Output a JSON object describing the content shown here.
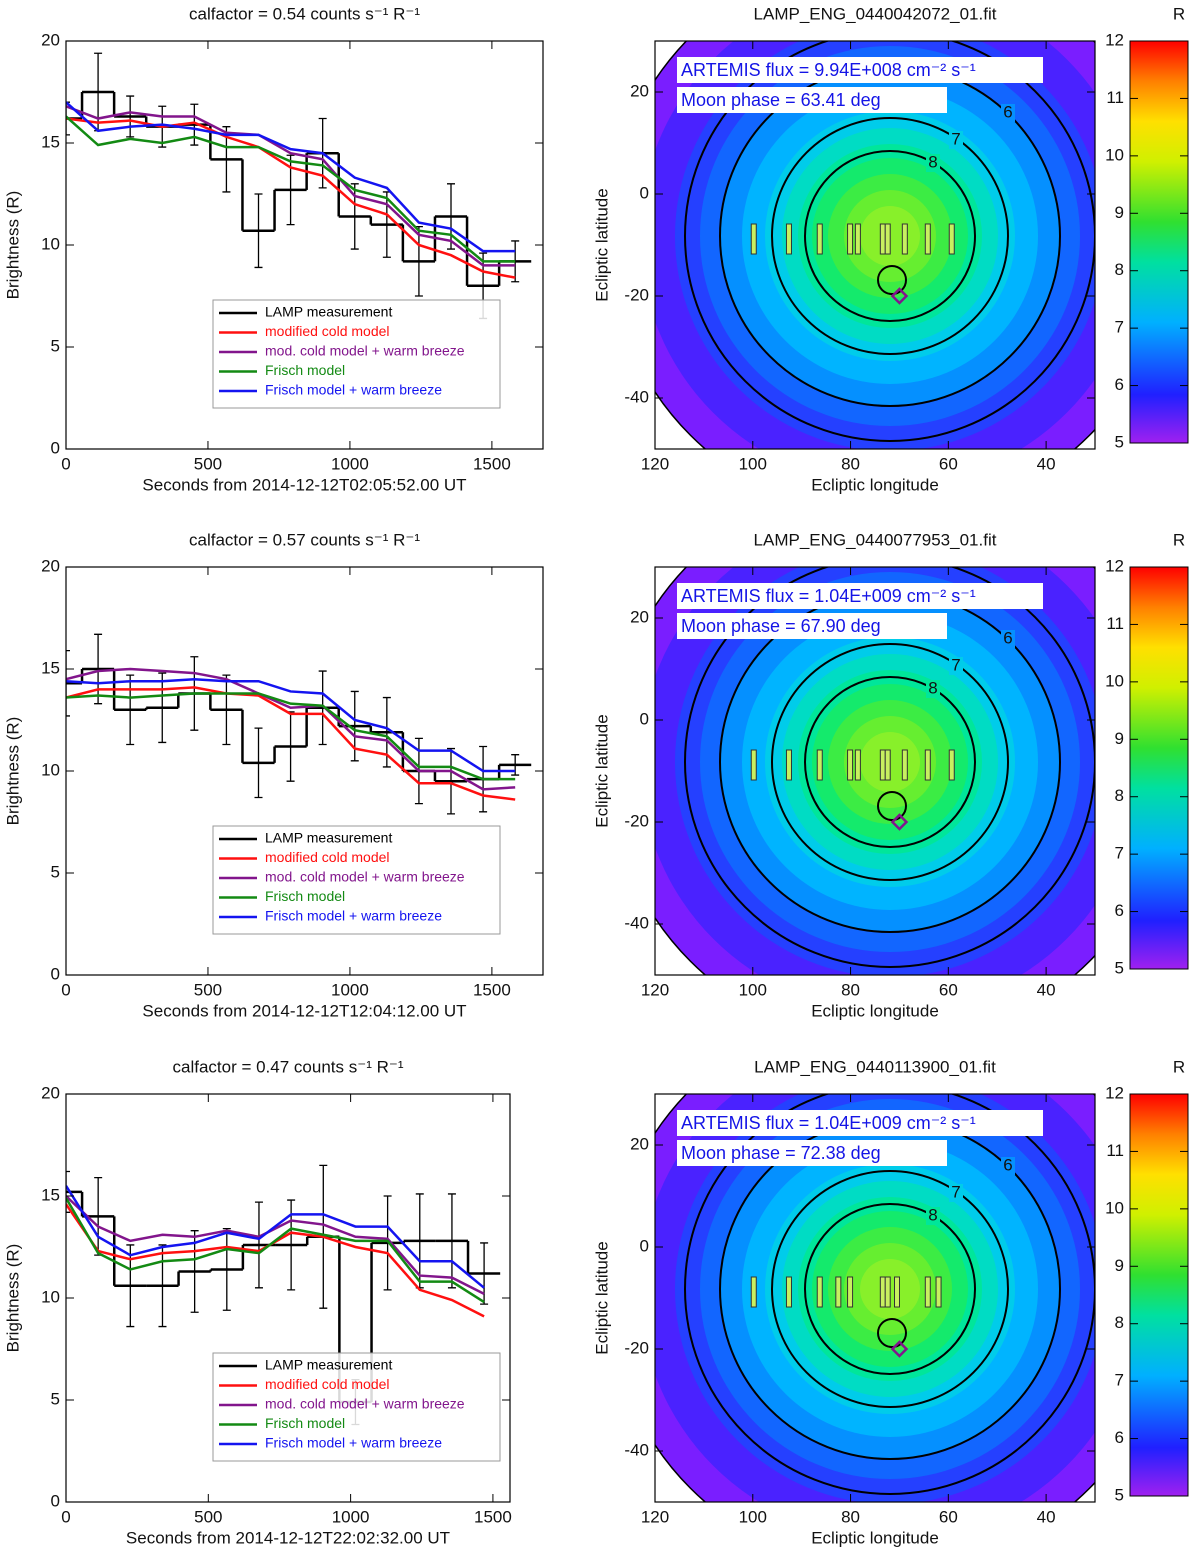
{
  "chart_data": [
    {
      "type": "line",
      "title": "calfactor = 0.54 counts s⁻¹ R⁻¹",
      "x_label": "Seconds from 2014-12-12T02:05:52.00 UT",
      "y_label": "Brightness (R)",
      "xlim": [
        0,
        1680
      ],
      "ylim": [
        0,
        20
      ],
      "xticks": [
        0,
        500,
        1000,
        1500
      ],
      "yticks": [
        0,
        5,
        10,
        15,
        20
      ],
      "x": [
        0,
        113,
        226,
        339,
        452,
        565,
        678,
        791,
        904,
        1017,
        1130,
        1243,
        1356,
        1469,
        1582
      ],
      "series": [
        {
          "name": "LAMP measurement",
          "color": "#000000",
          "step": true,
          "values": [
            16.2,
            17.5,
            16.3,
            15.8,
            15.9,
            14.2,
            10.7,
            12.7,
            14.5,
            11.4,
            11.0,
            9.2,
            11.4,
            8.0,
            9.2
          ],
          "errors": [
            0.8,
            1.9,
            1.0,
            1.0,
            1.0,
            1.6,
            1.8,
            1.7,
            1.7,
            1.6,
            1.6,
            1.7,
            1.6,
            1.6,
            1.0
          ]
        },
        {
          "name": "modified cold model",
          "color": "#ff1010",
          "values": [
            16.2,
            16.0,
            16.1,
            15.8,
            16.0,
            15.3,
            14.8,
            13.8,
            13.4,
            12.0,
            11.5,
            10.0,
            9.5,
            8.7,
            8.4
          ]
        },
        {
          "name": "mod. cold model + warm breeze",
          "color": "#82158c",
          "values": [
            16.8,
            16.2,
            16.5,
            16.3,
            16.3,
            15.5,
            15.4,
            14.5,
            14.2,
            12.4,
            12.0,
            10.5,
            10.2,
            9.0,
            9.0
          ]
        },
        {
          "name": "Frisch model",
          "color": "#138a13",
          "values": [
            16.3,
            14.9,
            15.2,
            15.0,
            15.3,
            14.8,
            14.8,
            14.1,
            13.9,
            12.7,
            12.3,
            10.7,
            10.5,
            9.2,
            9.2
          ]
        },
        {
          "name": "Frisch model + warm breeze",
          "color": "#1414f0",
          "values": [
            17.0,
            15.6,
            15.8,
            15.9,
            15.7,
            15.4,
            15.4,
            14.7,
            14.5,
            13.3,
            12.8,
            11.1,
            10.8,
            9.7,
            9.7
          ]
        }
      ]
    },
    {
      "type": "contour",
      "title": "LAMP_ENG_0440042072_01.fit",
      "x_label": "Ecliptic longitude",
      "y_label": "Ecliptic latitude",
      "xlim": [
        120,
        30
      ],
      "ylim": [
        -50,
        30
      ],
      "xticks": [
        120,
        100,
        80,
        60,
        40
      ],
      "yticks": [
        -40,
        -20,
        0,
        20
      ],
      "annotations": [
        "ARTEMIS flux =  9.94E+008 cm⁻² s⁻¹",
        "Moon phase =  63.41 deg"
      ],
      "contour_labels": [
        6,
        7,
        8
      ],
      "marker": {
        "x": 70,
        "y": -20
      },
      "slit_longitudes": [
        99.8,
        92.6,
        86.3,
        80.1,
        78.5,
        73.4,
        72.4,
        68.9,
        64.2,
        59.3
      ],
      "colorbar": {
        "label": "R",
        "lim": [
          5,
          12
        ],
        "ticks": [
          5,
          6,
          7,
          8,
          9,
          10,
          11,
          12
        ]
      }
    },
    {
      "type": "line",
      "title": "calfactor = 0.57 counts s⁻¹ R⁻¹",
      "x_label": "Seconds from 2014-12-12T12:04:12.00 UT",
      "y_label": "Brightness (R)",
      "xlim": [
        0,
        1680
      ],
      "ylim": [
        0,
        20
      ],
      "xticks": [
        0,
        500,
        1000,
        1500
      ],
      "yticks": [
        0,
        5,
        10,
        15,
        20
      ],
      "x": [
        0,
        113,
        226,
        339,
        452,
        565,
        678,
        791,
        904,
        1017,
        1130,
        1243,
        1356,
        1469,
        1582
      ],
      "series": [
        {
          "name": "LAMP measurement",
          "color": "#000000",
          "step": true,
          "values": [
            14.3,
            15.0,
            13.0,
            13.1,
            13.8,
            13.0,
            10.4,
            11.2,
            13.1,
            12.2,
            11.9,
            10.0,
            9.5,
            9.6,
            10.3
          ],
          "errors": [
            1.6,
            1.7,
            1.7,
            1.7,
            1.8,
            1.7,
            1.7,
            1.7,
            1.8,
            1.7,
            1.7,
            1.6,
            1.6,
            1.6,
            0.5
          ]
        },
        {
          "name": "modified cold model",
          "color": "#ff1010",
          "values": [
            13.6,
            14.0,
            14.0,
            14.0,
            14.1,
            13.8,
            13.7,
            12.8,
            12.8,
            11.1,
            10.8,
            9.4,
            9.4,
            8.8,
            8.6
          ]
        },
        {
          "name": "mod. cold model + warm breeze",
          "color": "#82158c",
          "values": [
            14.5,
            14.9,
            15.0,
            14.9,
            14.8,
            14.5,
            13.8,
            13.1,
            13.2,
            11.7,
            11.5,
            10.0,
            10.0,
            9.1,
            9.2
          ]
        },
        {
          "name": "Frisch model",
          "color": "#138a13",
          "values": [
            13.6,
            13.7,
            13.6,
            13.7,
            13.8,
            13.8,
            13.8,
            13.3,
            13.2,
            12.0,
            11.7,
            10.2,
            10.2,
            9.6,
            9.6
          ]
        },
        {
          "name": "Frisch model + warm breeze",
          "color": "#1414f0",
          "values": [
            14.4,
            14.3,
            14.4,
            14.4,
            14.5,
            14.4,
            14.4,
            13.9,
            13.8,
            12.5,
            12.1,
            11.0,
            11.0,
            10.0,
            10.0
          ]
        }
      ]
    },
    {
      "type": "contour",
      "title": "LAMP_ENG_0440077953_01.fit",
      "x_label": "Ecliptic longitude",
      "y_label": "Ecliptic latitude",
      "xlim": [
        120,
        30
      ],
      "ylim": [
        -50,
        30
      ],
      "xticks": [
        120,
        100,
        80,
        60,
        40
      ],
      "yticks": [
        -40,
        -20,
        0,
        20
      ],
      "annotations": [
        "ARTEMIS flux =  1.04E+009 cm⁻² s⁻¹",
        "Moon phase =  67.90 deg"
      ],
      "contour_labels": [
        6,
        7,
        8
      ],
      "marker": {
        "x": 70,
        "y": -20
      },
      "slit_longitudes": [
        99.8,
        92.6,
        86.3,
        80.1,
        78.5,
        73.4,
        72.4,
        68.9,
        64.2,
        59.3
      ],
      "colorbar": {
        "label": "R",
        "lim": [
          5,
          12
        ],
        "ticks": [
          5,
          6,
          7,
          8,
          9,
          10,
          11,
          12
        ]
      }
    },
    {
      "type": "line",
      "title": "calfactor = 0.47 counts s⁻¹ R⁻¹",
      "x_label": "Seconds from 2014-12-12T22:02:32.00 UT",
      "y_label": "Brightness (R)",
      "xlim": [
        0,
        1560
      ],
      "ylim": [
        0,
        20
      ],
      "xticks": [
        0,
        500,
        1000,
        1500
      ],
      "yticks": [
        0,
        5,
        10,
        15,
        20
      ],
      "x": [
        0,
        113,
        226,
        339,
        452,
        565,
        678,
        791,
        904,
        1017,
        1130,
        1243,
        1356,
        1469
      ],
      "series": [
        {
          "name": "LAMP measurement",
          "color": "#000000",
          "step": true,
          "values": [
            15.2,
            14.0,
            10.6,
            10.6,
            11.3,
            11.4,
            12.6,
            12.6,
            13.0,
            4.9,
            12.7,
            12.8,
            12.8,
            11.2
          ],
          "errors": [
            1.0,
            1.9,
            2.0,
            2.0,
            2.0,
            2.0,
            2.1,
            2.2,
            3.5,
            1.1,
            2.3,
            2.3,
            2.3,
            1.5
          ]
        },
        {
          "name": "modified cold model",
          "color": "#ff1010",
          "values": [
            14.6,
            12.3,
            11.9,
            12.2,
            12.3,
            12.5,
            12.3,
            13.2,
            13.0,
            12.5,
            12.2,
            10.4,
            9.9,
            9.1
          ]
        },
        {
          "name": "mod. cold model + warm breeze",
          "color": "#82158c",
          "values": [
            15.0,
            13.5,
            12.8,
            13.1,
            13.0,
            13.3,
            13.0,
            13.8,
            13.6,
            13.0,
            12.9,
            11.1,
            11.0,
            10.2
          ]
        },
        {
          "name": "Frisch model",
          "color": "#138a13",
          "values": [
            14.9,
            12.2,
            11.4,
            11.8,
            11.9,
            12.4,
            12.2,
            13.4,
            13.1,
            12.8,
            12.8,
            10.8,
            10.8,
            9.8
          ]
        },
        {
          "name": "Frisch model + warm breeze",
          "color": "#1414f0",
          "values": [
            15.5,
            13.0,
            12.1,
            12.5,
            12.7,
            13.2,
            12.9,
            14.1,
            14.1,
            13.5,
            13.5,
            11.8,
            11.8,
            10.5
          ]
        }
      ]
    },
    {
      "type": "contour",
      "title": "LAMP_ENG_0440113900_01.fit",
      "x_label": "Ecliptic longitude",
      "y_label": "Ecliptic latitude",
      "xlim": [
        120,
        30
      ],
      "ylim": [
        -50,
        30
      ],
      "xticks": [
        120,
        100,
        80,
        60,
        40
      ],
      "yticks": [
        -40,
        -20,
        0,
        20
      ],
      "annotations": [
        "ARTEMIS flux =  1.04E+009 cm⁻² s⁻¹",
        "Moon phase =  72.38 deg"
      ],
      "contour_labels": [
        6,
        7,
        8
      ],
      "marker": {
        "x": 70,
        "y": -20
      },
      "slit_longitudes": [
        99.8,
        92.6,
        86.3,
        82.5,
        80.1,
        73.4,
        72.4,
        70.5,
        64.2,
        62.0
      ],
      "colorbar": {
        "label": "R",
        "lim": [
          5,
          12
        ],
        "ticks": [
          5,
          6,
          7,
          8,
          9,
          10,
          11,
          12
        ]
      }
    }
  ]
}
